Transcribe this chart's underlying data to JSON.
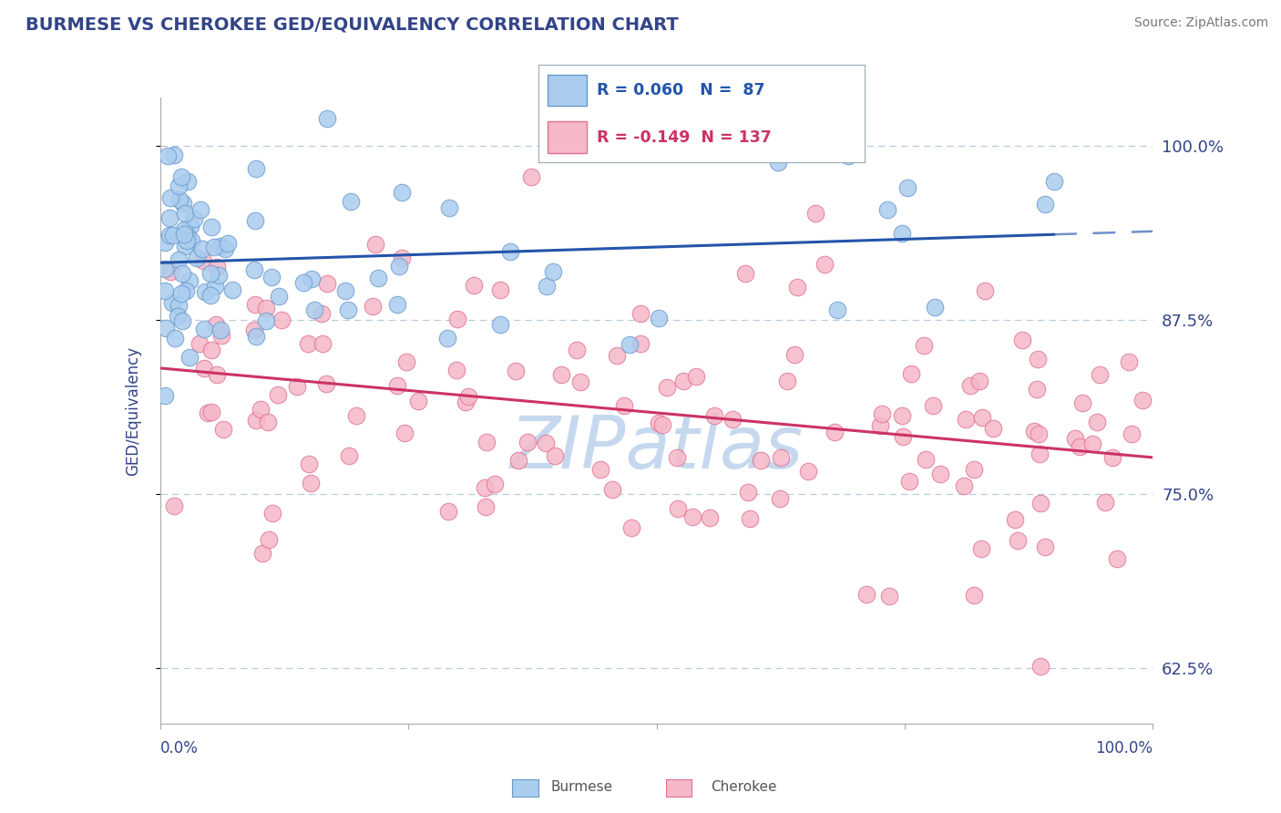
{
  "title": "BURMESE VS CHEROKEE GED/EQUIVALENCY CORRELATION CHART",
  "source": "Source: ZipAtlas.com",
  "ylabel": "GED/Equivalency",
  "ytick_labels": [
    "62.5%",
    "75.0%",
    "87.5%",
    "100.0%"
  ],
  "ytick_values": [
    0.625,
    0.75,
    0.875,
    1.0
  ],
  "xlim": [
    0.0,
    1.0
  ],
  "ylim": [
    0.585,
    1.035
  ],
  "burmese_color": "#aaccee",
  "cherokee_color": "#f5b8c8",
  "burmese_edge": "#6699cc",
  "cherokee_edge": "#e07090",
  "burmese_line_color": "#2255aa",
  "cherokee_line_color": "#cc3366",
  "R_burmese": 0.06,
  "N_burmese": 87,
  "R_cherokee": -0.149,
  "N_cherokee": 137,
  "background_color": "#ffffff",
  "grid_color": "#bbccdd",
  "title_color": "#334488",
  "axis_label_color": "#334488",
  "watermark_color": "#c5d8ee",
  "legend_border_color": "#99aabb"
}
